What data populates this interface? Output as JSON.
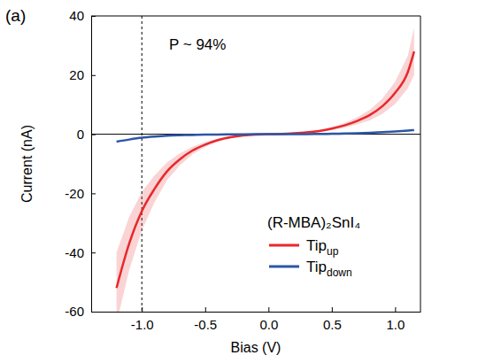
{
  "chart_data": {
    "type": "line",
    "panel_label": "(a)",
    "x_label": "Bias (V)",
    "y_label": "Current (nA)",
    "xlim": [
      -1.4,
      1.2
    ],
    "ylim": [
      -60,
      40
    ],
    "xticks": [
      {
        "value": -1.0,
        "label": "-1.0"
      },
      {
        "value": -0.5,
        "label": "-0.5"
      },
      {
        "value": 0.0,
        "label": "0.0"
      },
      {
        "value": 0.5,
        "label": "0.5"
      },
      {
        "value": 1.0,
        "label": "1.0"
      }
    ],
    "yticks": [
      -60,
      -40,
      -20,
      0,
      20,
      40
    ],
    "legend": "lower right",
    "legend_title": "(R-MBA)₂SnI₄",
    "annotations": [
      {
        "text": "P ~ 94%"
      }
    ],
    "reference_lines": [
      {
        "x": -1.0,
        "line_style": "dashed"
      },
      {
        "y": 0,
        "line_style": "solid"
      }
    ],
    "x": [
      -1.2,
      -1.1,
      -1.0,
      -0.9,
      -0.8,
      -0.7,
      -0.6,
      -0.5,
      -0.4,
      -0.3,
      -0.2,
      -0.1,
      0,
      0.1,
      0.2,
      0.3,
      0.4,
      0.5,
      0.6,
      0.7,
      0.8,
      0.9,
      1.0,
      1.1,
      1.15
    ],
    "series": [
      {
        "name": "Tip up",
        "color": "#e8282b",
        "values": [
          -52,
          -37,
          -26,
          -18.5,
          -12.5,
          -8.5,
          -5.5,
          -3.5,
          -2,
          -1,
          -0.4,
          -0.1,
          0,
          0.1,
          0.3,
          0.6,
          1.1,
          1.9,
          3,
          4.5,
          6.5,
          9.5,
          14,
          21,
          28
        ],
        "errors": [
          12,
          9,
          6.5,
          4.5,
          3,
          2,
          1.3,
          0.8,
          0.5,
          0.3,
          0.1,
          0,
          0,
          0,
          0.1,
          0.2,
          0.3,
          0.5,
          0.8,
          1.2,
          1.8,
          2.6,
          3.8,
          5.5,
          8
        ]
      },
      {
        "name": "Tip down",
        "color": "#2c56a6",
        "values": [
          -2.5,
          -1.8,
          -1.2,
          -0.8,
          -0.5,
          -0.35,
          -0.25,
          -0.15,
          -0.1,
          -0.05,
          -0.02,
          0,
          0,
          0,
          0.02,
          0.05,
          0.1,
          0.15,
          0.25,
          0.35,
          0.5,
          0.7,
          0.9,
          1.2,
          1.4
        ]
      }
    ]
  }
}
